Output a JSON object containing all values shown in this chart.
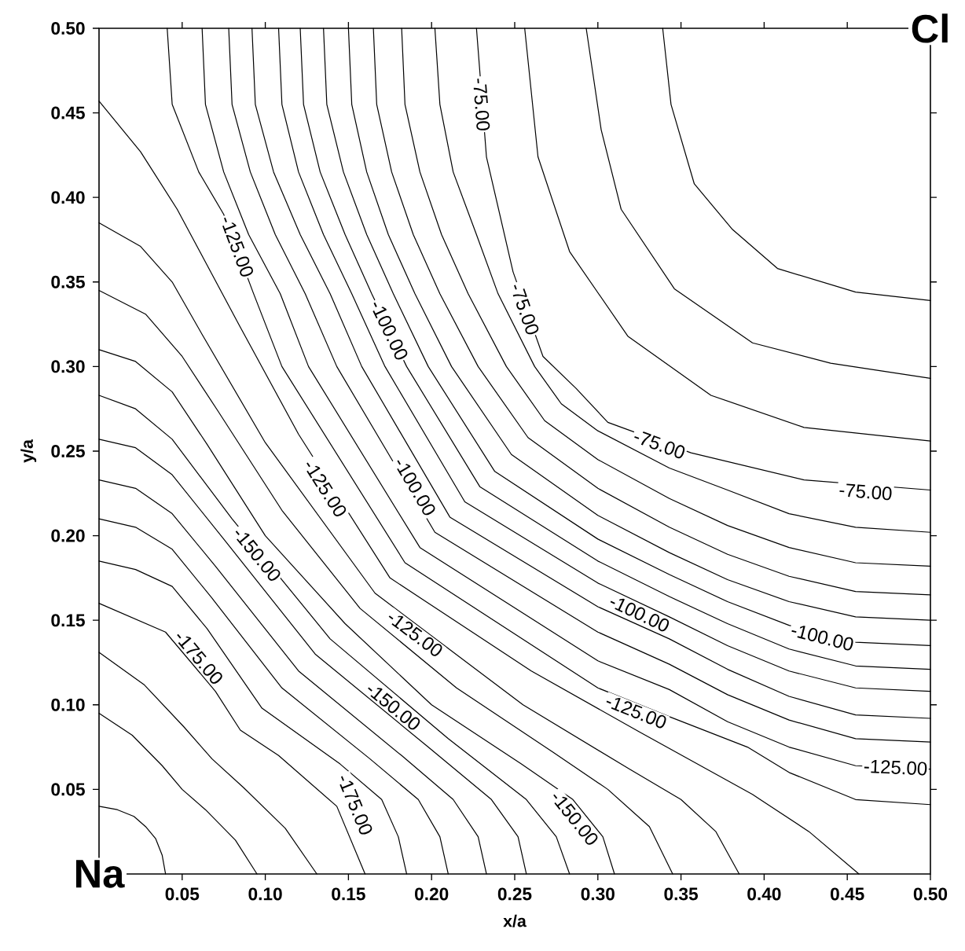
{
  "chart_data": {
    "type": "line",
    "xlabel": "x/a",
    "ylabel": "y/a",
    "xlim": [
      0,
      0.5
    ],
    "ylim": [
      0,
      0.5
    ],
    "xticks": [
      0.05,
      {
        "value": 0.1,
        "label": "0.10"
      },
      0.15,
      {
        "value": 0.2,
        "label": "0.20"
      },
      0.25,
      {
        "value": 0.3,
        "label": "0.30"
      },
      0.35,
      {
        "value": 0.4,
        "label": "0.40"
      },
      0.45,
      {
        "value": 0.5,
        "label": "0.50"
      }
    ],
    "yticks": [
      0.05,
      {
        "value": 0.1,
        "label": "0.10"
      },
      0.15,
      {
        "value": 0.2,
        "label": "0.20"
      },
      0.25,
      {
        "value": 0.3,
        "label": "0.30"
      },
      0.35,
      {
        "value": 0.4,
        "label": "0.40"
      },
      0.45,
      {
        "value": 0.5,
        "label": "0.50"
      }
    ],
    "series": [
      {
        "color": "#000000",
        "x": [
          0,
          0.011,
          0.021,
          0.028,
          0.034,
          0.038,
          0.04
        ],
        "values": [
          0.04,
          0.038,
          0.034,
          0.028,
          0.021,
          0.011,
          0
        ]
      },
      {
        "color": "#000000",
        "x": [
          0,
          0.02,
          0.038,
          0.05,
          0.064,
          0.082,
          0.095
        ],
        "values": [
          0.095,
          0.082,
          0.064,
          0.05,
          0.038,
          0.02,
          0
        ]
      },
      {
        "color": "#000000",
        "x": [
          0,
          0.027,
          0.051,
          0.068,
          0.087,
          0.112,
          0.131
        ],
        "values": [
          0.131,
          0.112,
          0.087,
          0.068,
          0.051,
          0.027,
          0
        ]
      },
      {
        "color": "#000000",
        "x": [
          0,
          0.04,
          0.07,
          0.085,
          0.108,
          0.143,
          0.16
        ],
        "values": [
          0.16,
          0.143,
          0.108,
          0.085,
          0.07,
          0.04,
          0
        ]
      },
      {
        "color": "#000000",
        "x": [
          0,
          0.022,
          0.044,
          0.065,
          0.098,
          0.145,
          0.17,
          0.18,
          0.185
        ],
        "values": [
          0.185,
          0.18,
          0.17,
          0.145,
          0.098,
          0.065,
          0.044,
          0.022,
          0
        ]
      },
      {
        "color": "#000000",
        "x": [
          0,
          0.022,
          0.044,
          0.068,
          0.11,
          0.163,
          0.192,
          0.205,
          0.21
        ],
        "values": [
          0.21,
          0.205,
          0.192,
          0.163,
          0.11,
          0.068,
          0.044,
          0.022,
          0
        ]
      },
      {
        "color": "#000000",
        "x": [
          0,
          0.022,
          0.044,
          0.07,
          0.12,
          0.182,
          0.213,
          0.228,
          0.233
        ],
        "values": [
          0.233,
          0.228,
          0.213,
          0.182,
          0.12,
          0.07,
          0.044,
          0.022,
          0
        ]
      },
      {
        "color": "#000000",
        "x": [
          0,
          0.022,
          0.044,
          0.075,
          0.13,
          0.198,
          0.236,
          0.252,
          0.257
        ],
        "values": [
          0.257,
          0.252,
          0.236,
          0.198,
          0.13,
          0.075,
          0.044,
          0.022,
          0
        ]
      },
      {
        "color": "#000000",
        "x": [
          0,
          0.022,
          0.044,
          0.08,
          0.139,
          0.21,
          0.257,
          0.275,
          0.283
        ],
        "values": [
          0.283,
          0.275,
          0.257,
          0.21,
          0.139,
          0.08,
          0.044,
          0.022,
          0
        ]
      },
      {
        "color": "#000000",
        "x": [
          0,
          0.022,
          0.044,
          0.065,
          0.1,
          0.148,
          0.2,
          0.254,
          0.285,
          0.303,
          0.31
        ],
        "values": [
          0.31,
          0.303,
          0.285,
          0.254,
          0.2,
          0.148,
          0.1,
          0.065,
          0.044,
          0.022,
          0
        ]
      },
      {
        "color": "#000000",
        "x": [
          0,
          0.028,
          0.05,
          0.072,
          0.11,
          0.157,
          0.215,
          0.273,
          0.306,
          0.331,
          0.345
        ],
        "values": [
          0.345,
          0.331,
          0.306,
          0.273,
          0.215,
          0.157,
          0.11,
          0.072,
          0.05,
          0.028,
          0
        ]
      },
      {
        "color": "#000000",
        "x": [
          0,
          0.025,
          0.044,
          0.062,
          0.1,
          0.166,
          0.255,
          0.319,
          0.35,
          0.371,
          0.385
        ],
        "values": [
          0.385,
          0.371,
          0.35,
          0.319,
          0.255,
          0.166,
          0.1,
          0.062,
          0.044,
          0.025,
          0
        ]
      },
      {
        "color": "#000000",
        "x": [
          0,
          0.025,
          0.047,
          0.084,
          0.12,
          0.175,
          0.26,
          0.325,
          0.393,
          0.427,
          0.457
        ],
        "values": [
          0.457,
          0.427,
          0.393,
          0.325,
          0.26,
          0.175,
          0.12,
          0.084,
          0.047,
          0.025,
          0
        ]
      },
      {
        "color": "#000000",
        "x": [
          0.041,
          0.044,
          0.06,
          0.075,
          0.093,
          0.11,
          0.184,
          0.3,
          0.343,
          0.39,
          0.415,
          0.455,
          0.5
        ],
        "values": [
          0.5,
          0.455,
          0.415,
          0.39,
          0.343,
          0.3,
          0.184,
          0.11,
          0.093,
          0.075,
          0.06,
          0.044,
          0.041
        ]
      },
      {
        "color": "#000000",
        "x": [
          0.062,
          0.064,
          0.075,
          0.09,
          0.109,
          0.126,
          0.193,
          0.3,
          0.343,
          0.378,
          0.415,
          0.455,
          0.5
        ],
        "values": [
          0.5,
          0.455,
          0.415,
          0.378,
          0.343,
          0.3,
          0.193,
          0.126,
          0.109,
          0.09,
          0.075,
          0.064,
          0.062
        ]
      },
      {
        "color": "#000000",
        "x": [
          0.078,
          0.08,
          0.091,
          0.106,
          0.124,
          0.143,
          0.202,
          0.3,
          0.343,
          0.378,
          0.415,
          0.455,
          0.5
        ],
        "values": [
          0.5,
          0.455,
          0.415,
          0.378,
          0.343,
          0.3,
          0.202,
          0.143,
          0.124,
          0.106,
          0.091,
          0.08,
          0.078
        ]
      },
      {
        "color": "#000000",
        "x": [
          0.092,
          0.094,
          0.105,
          0.121,
          0.139,
          0.158,
          0.211,
          0.3,
          0.343,
          0.378,
          0.415,
          0.455,
          0.5
        ],
        "values": [
          0.5,
          0.455,
          0.415,
          0.378,
          0.343,
          0.3,
          0.211,
          0.158,
          0.139,
          0.121,
          0.105,
          0.094,
          0.092
        ]
      },
      {
        "color": "#000000",
        "x": [
          0.108,
          0.11,
          0.12,
          0.135,
          0.152,
          0.172,
          0.22,
          0.3,
          0.343,
          0.378,
          0.415,
          0.455,
          0.5
        ],
        "values": [
          0.5,
          0.455,
          0.415,
          0.378,
          0.343,
          0.3,
          0.22,
          0.172,
          0.152,
          0.135,
          0.12,
          0.11,
          0.108
        ]
      },
      {
        "color": "#000000",
        "x": [
          0.121,
          0.123,
          0.133,
          0.148,
          0.164,
          0.185,
          0.229,
          0.3,
          0.343,
          0.378,
          0.415,
          0.455,
          0.5
        ],
        "values": [
          0.5,
          0.455,
          0.415,
          0.378,
          0.343,
          0.3,
          0.229,
          0.185,
          0.164,
          0.148,
          0.133,
          0.123,
          0.121
        ]
      },
      {
        "color": "#000000",
        "x": [
          0.135,
          0.137,
          0.147,
          0.161,
          0.177,
          0.198,
          0.238,
          0.3,
          0.343,
          0.378,
          0.415,
          0.455,
          0.5
        ],
        "values": [
          0.5,
          0.455,
          0.415,
          0.378,
          0.343,
          0.3,
          0.238,
          0.198,
          0.177,
          0.161,
          0.147,
          0.137,
          0.135
        ]
      },
      {
        "color": "#000000",
        "x": [
          0.15,
          0.152,
          0.161,
          0.174,
          0.19,
          0.212,
          0.248,
          0.3,
          0.343,
          0.378,
          0.415,
          0.455,
          0.5
        ],
        "values": [
          0.5,
          0.455,
          0.415,
          0.378,
          0.343,
          0.3,
          0.248,
          0.212,
          0.19,
          0.174,
          0.161,
          0.152,
          0.15
        ]
      },
      {
        "color": "#000000",
        "x": [
          0.165,
          0.167,
          0.176,
          0.189,
          0.205,
          0.228,
          0.258,
          0.3,
          0.343,
          0.378,
          0.415,
          0.455,
          0.5
        ],
        "values": [
          0.5,
          0.455,
          0.415,
          0.378,
          0.343,
          0.3,
          0.258,
          0.228,
          0.205,
          0.189,
          0.176,
          0.167,
          0.165
        ]
      },
      {
        "color": "#000000",
        "x": [
          0.182,
          0.184,
          0.193,
          0.206,
          0.222,
          0.245,
          0.268,
          0.3,
          0.343,
          0.378,
          0.415,
          0.455,
          0.5
        ],
        "values": [
          0.5,
          0.455,
          0.415,
          0.378,
          0.343,
          0.3,
          0.268,
          0.245,
          0.222,
          0.206,
          0.193,
          0.184,
          0.182
        ]
      },
      {
        "color": "#000000",
        "x": [
          0.202,
          0.205,
          0.213,
          0.227,
          0.24,
          0.262,
          0.278,
          0.3,
          0.343,
          0.378,
          0.415,
          0.455,
          0.5
        ],
        "values": [
          0.5,
          0.455,
          0.415,
          0.378,
          0.343,
          0.3,
          0.278,
          0.262,
          0.24,
          0.227,
          0.213,
          0.205,
          0.202
        ]
      },
      {
        "color": "#000000",
        "x": [
          0.227,
          0.233,
          0.249,
          0.267,
          0.287,
          0.306,
          0.356,
          0.424,
          0.5
        ],
        "values": [
          0.5,
          0.424,
          0.356,
          0.306,
          0.287,
          0.267,
          0.249,
          0.233,
          0.227
        ]
      },
      {
        "color": "#000000",
        "x": [
          0.256,
          0.264,
          0.283,
          0.318,
          0.368,
          0.424,
          0.5
        ],
        "values": [
          0.5,
          0.424,
          0.368,
          0.318,
          0.283,
          0.264,
          0.256
        ]
      },
      {
        "color": "#000000",
        "x": [
          0.293,
          0.302,
          0.314,
          0.346,
          0.393,
          0.44,
          0.5
        ],
        "values": [
          0.5,
          0.44,
          0.393,
          0.346,
          0.314,
          0.302,
          0.293
        ]
      },
      {
        "color": "#000000",
        "x": [
          0.339,
          0.344,
          0.358,
          0.381,
          0.408,
          0.455,
          0.5
        ],
        "values": [
          0.5,
          0.455,
          0.408,
          0.381,
          0.358,
          0.344,
          0.339
        ]
      }
    ],
    "annotations": [
      {
        "text": "-75.00",
        "x": 0.23,
        "y": 0.455
      },
      {
        "text": "-75.00",
        "x": 0.256,
        "y": 0.334
      },
      {
        "text": "-75.00",
        "x": 0.337,
        "y": 0.254
      },
      {
        "text": "-75.00",
        "x": 0.461,
        "y": 0.226
      },
      {
        "text": "-100.00",
        "x": 0.1745,
        "y": 0.3215
      },
      {
        "text": "-100.00",
        "x": 0.19,
        "y": 0.229
      },
      {
        "text": "-100.00",
        "x": 0.325,
        "y": 0.154
      },
      {
        "text": "-100.00",
        "x": 0.435,
        "y": 0.14
      },
      {
        "text": "-125.00",
        "x": 0.083,
        "y": 0.371
      },
      {
        "text": "-125.00",
        "x": 0.136,
        "y": 0.228
      },
      {
        "text": "-125.00",
        "x": 0.19,
        "y": 0.142
      },
      {
        "text": "-125.00",
        "x": 0.323,
        "y": 0.096
      },
      {
        "text": "-125.00",
        "x": 0.479,
        "y": 0.063
      },
      {
        "text": "-150.00",
        "x": 0.095,
        "y": 0.189
      },
      {
        "text": "-150.00",
        "x": 0.177,
        "y": 0.099
      },
      {
        "text": "-150.00",
        "x": 0.286,
        "y": 0.033
      },
      {
        "text": "-175.00",
        "x": 0.06,
        "y": 0.128
      },
      {
        "text": "-175.00",
        "x": 0.154,
        "y": 0.041
      },
      "Na",
      "Cl"
    ]
  }
}
